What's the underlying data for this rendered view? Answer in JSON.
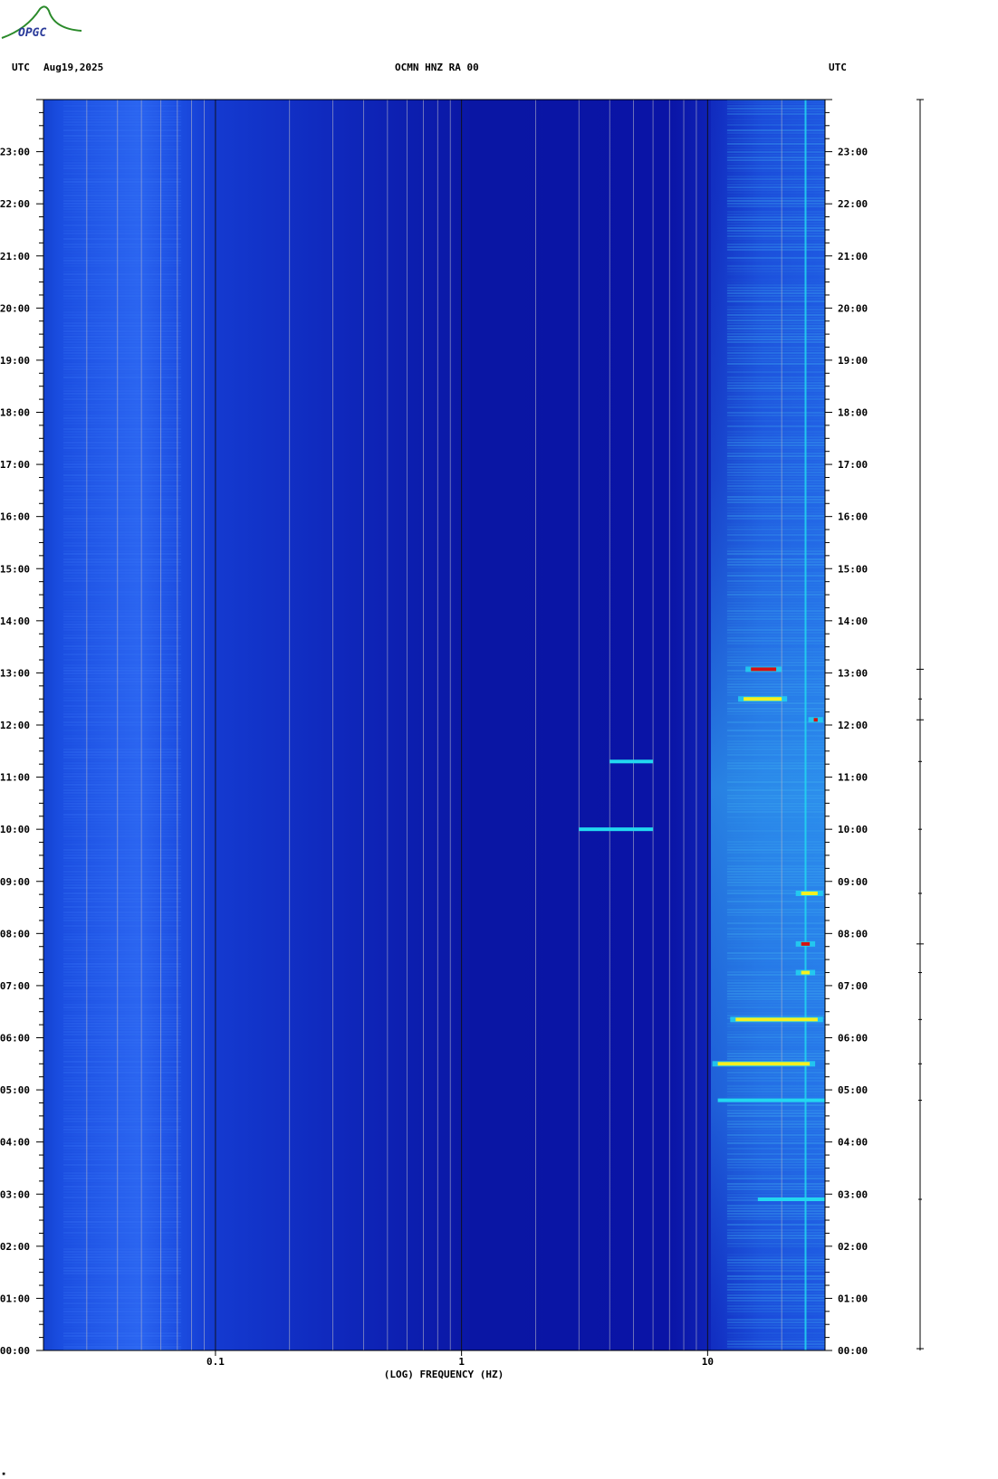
{
  "header": {
    "left_tz": "UTC",
    "date": "Aug19,2025",
    "title": "OCMN HNZ RA 00",
    "right_tz": "UTC"
  },
  "logo": {
    "text": "OPGC",
    "color": "#2a8a2a"
  },
  "footer_mark": "▪",
  "colors": {
    "background": "#0a12a8",
    "low_band": "#1a4de0",
    "high_band": "#2a7cf0",
    "energy_cyan": "#22d8f0",
    "energy_yellow": "#f5f020",
    "energy_red": "#d81010",
    "major_gridline": "#101010",
    "minor_gridline": "#b8b8c8"
  },
  "chart_data": {
    "type": "heatmap",
    "title": "OCMN HNZ RA 00",
    "xlabel": "(LOG) FREQUENCY (HZ)",
    "ylabel": "UTC",
    "x_scale": "log",
    "xlim": [
      0.02,
      30
    ],
    "x_tick_labels": [
      {
        "value": 0.1,
        "label": "0.1"
      },
      {
        "value": 1,
        "label": "1"
      },
      {
        "value": 10,
        "label": "10"
      }
    ],
    "ylim_hours": [
      0,
      24
    ],
    "y_tick_labels": [
      "00:00",
      "01:00",
      "02:00",
      "03:00",
      "04:00",
      "05:00",
      "06:00",
      "07:00",
      "08:00",
      "09:00",
      "10:00",
      "11:00",
      "12:00",
      "13:00",
      "14:00",
      "15:00",
      "16:00",
      "17:00",
      "18:00",
      "19:00",
      "20:00",
      "21:00",
      "22:00",
      "23:00"
    ],
    "grid": true,
    "energy_events": [
      {
        "time_h": 13.07,
        "freq_lo": 15,
        "freq_hi": 19,
        "level": "red"
      },
      {
        "time_h": 12.1,
        "freq_lo": 27,
        "freq_hi": 28,
        "level": "red"
      },
      {
        "time_h": 12.5,
        "freq_lo": 14,
        "freq_hi": 20,
        "level": "yellow"
      },
      {
        "time_h": 8.77,
        "freq_lo": 24,
        "freq_hi": 28,
        "level": "yellow"
      },
      {
        "time_h": 7.8,
        "freq_lo": 24,
        "freq_hi": 26,
        "level": "red"
      },
      {
        "time_h": 7.25,
        "freq_lo": 24,
        "freq_hi": 26,
        "level": "yellow"
      },
      {
        "time_h": 6.35,
        "freq_lo": 13,
        "freq_hi": 28,
        "level": "yellow"
      },
      {
        "time_h": 5.5,
        "freq_lo": 11,
        "freq_hi": 26,
        "level": "yellow"
      },
      {
        "time_h": 4.8,
        "freq_lo": 11,
        "freq_hi": 30,
        "level": "cyan"
      },
      {
        "time_h": 2.9,
        "freq_lo": 16,
        "freq_hi": 30,
        "level": "cyan"
      },
      {
        "time_h": 10.0,
        "freq_lo": 3,
        "freq_hi": 6,
        "level": "cyan"
      },
      {
        "time_h": 11.3,
        "freq_lo": 4,
        "freq_hi": 6,
        "level": "cyan"
      }
    ],
    "persistent_line_hz": 25
  }
}
